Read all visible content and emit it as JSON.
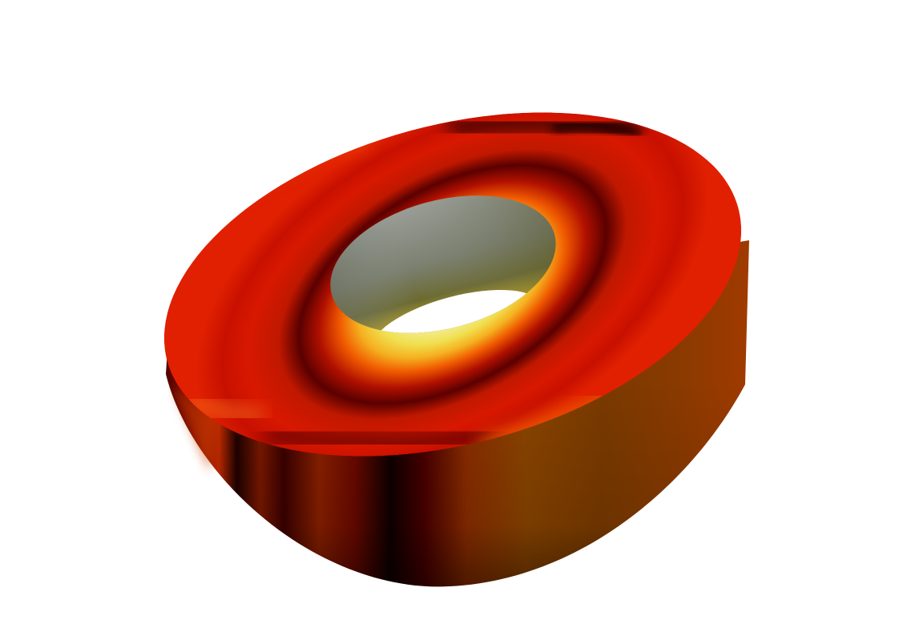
{
  "scene": {
    "background_color": "#ffffff",
    "object": "annular-cylinder",
    "colormap": "black-body",
    "colormap_stops": [
      "#000000",
      "#7a0000",
      "#d01a00",
      "#ff6a00",
      "#f2e050",
      "#f3f39a"
    ],
    "hole_color": "#7d8a78"
  }
}
